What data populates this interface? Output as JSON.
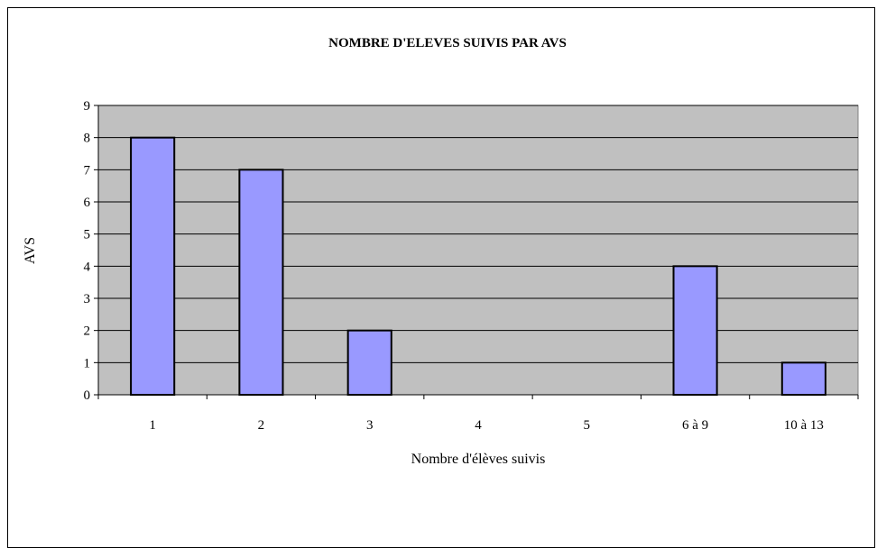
{
  "chart_data": {
    "type": "bar",
    "title": "NOMBRE D'ELEVES SUIVIS PAR AVS",
    "xlabel": "Nombre d'élèves suivis",
    "ylabel": "AVS",
    "categories": [
      "1",
      "2",
      "3",
      "4",
      "5",
      "6 à 9",
      "10 à 13"
    ],
    "values": [
      8,
      7,
      2,
      0,
      0,
      4,
      1
    ],
    "ylim": [
      0,
      9
    ],
    "yticks": [
      "0",
      "1",
      "2",
      "3",
      "4",
      "5",
      "6",
      "7",
      "8",
      "9"
    ],
    "grid": true,
    "legend": "none",
    "colors": {
      "bar": "#9999FF",
      "bar_border": "#000000",
      "plot_background": "#C0C0C0",
      "gridline": "#000000"
    }
  }
}
